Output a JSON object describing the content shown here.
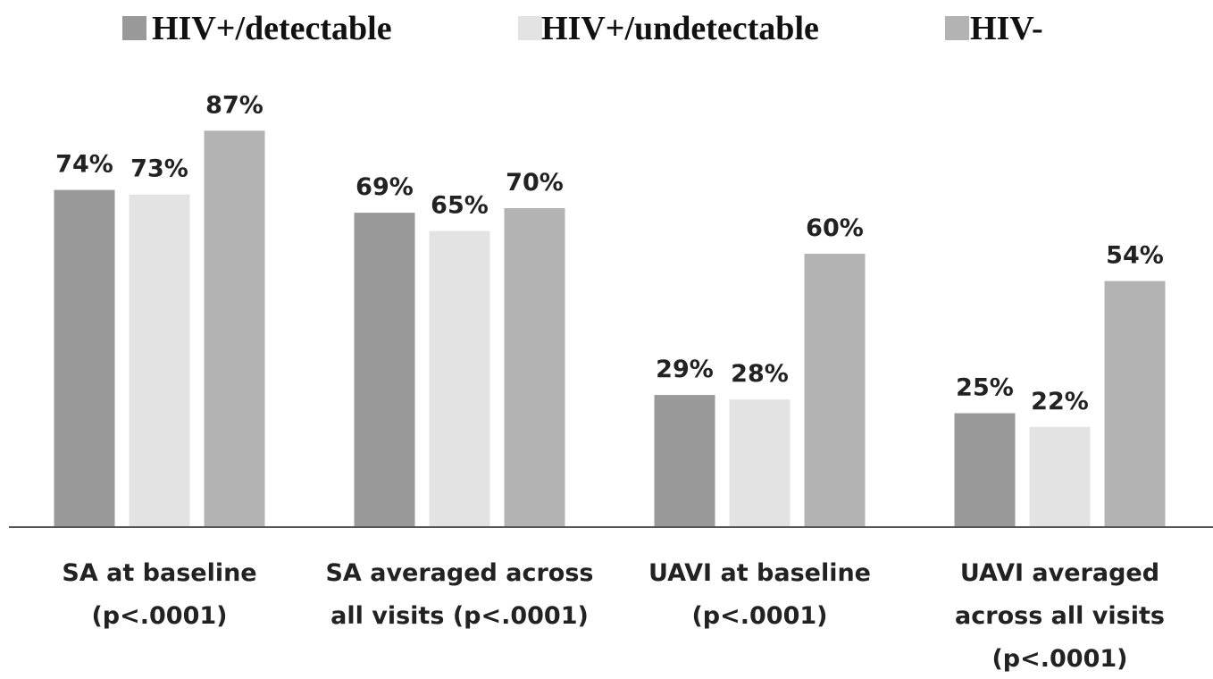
{
  "chart_data": {
    "type": "bar",
    "categories": [
      "SA at baseline\n(p<.0001)",
      "SA averaged across\nall visits (p<.0001)",
      "UAVI at baseline\n(p<.0001)",
      "UAVI averaged\nacross all visits\n(p<.0001)"
    ],
    "series": [
      {
        "name": "HIV+/detectable",
        "color": "#999999",
        "values": [
          74,
          69,
          29,
          25
        ],
        "value_labels": [
          "74%",
          "69%",
          "29%",
          "25%"
        ]
      },
      {
        "name": "HIV+/undetectable",
        "color": "#e3e3e3",
        "values": [
          73,
          65,
          28,
          22
        ],
        "value_labels": [
          "73%",
          "65%",
          "28%",
          "22%"
        ]
      },
      {
        "name": "HIV-",
        "color": "#b3b3b3",
        "values": [
          87,
          70,
          60,
          54
        ],
        "value_labels": [
          "87%",
          "70%",
          "60%",
          "54%"
        ]
      }
    ],
    "ylim": [
      0,
      100
    ]
  }
}
